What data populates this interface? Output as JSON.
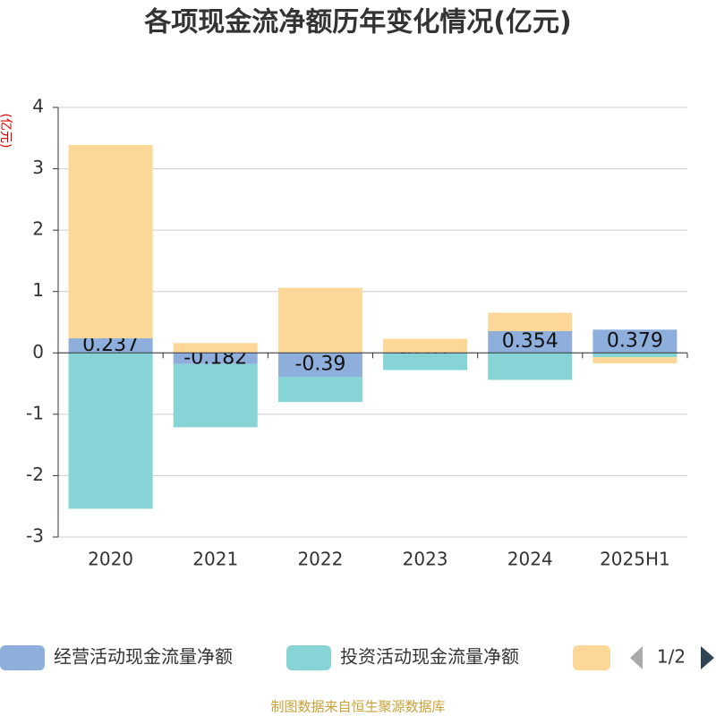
{
  "chart_data": {
    "type": "bar",
    "stacked": true,
    "title": "各项现金流净额历年变化情况(亿元)",
    "y_label": "(亿元)",
    "categories": [
      "2020",
      "2021",
      "2022",
      "2023",
      "2024",
      "2025H1"
    ],
    "series": [
      {
        "name": "经营活动现金流量净额",
        "color": "#8eaedc",
        "values": [
          0.237,
          -0.182,
          -0.39,
          -0.01,
          0.354,
          0.379
        ]
      },
      {
        "name": "投资活动现金流量净额",
        "color": "#87d4d6",
        "values": [
          -2.54,
          -1.03,
          -0.41,
          -0.27,
          -0.44,
          -0.07
        ]
      },
      {
        "color": "#fdd798",
        "values": [
          3.15,
          0.16,
          1.06,
          0.23,
          0.3,
          -0.1
        ]
      }
    ],
    "ylim": [
      -3,
      4
    ],
    "yticks": [
      -3,
      -2,
      -1,
      0,
      1,
      2,
      3,
      4
    ],
    "grid": true,
    "legend_page": "1/2",
    "source": "制图数据来自恒生聚源数据库"
  }
}
